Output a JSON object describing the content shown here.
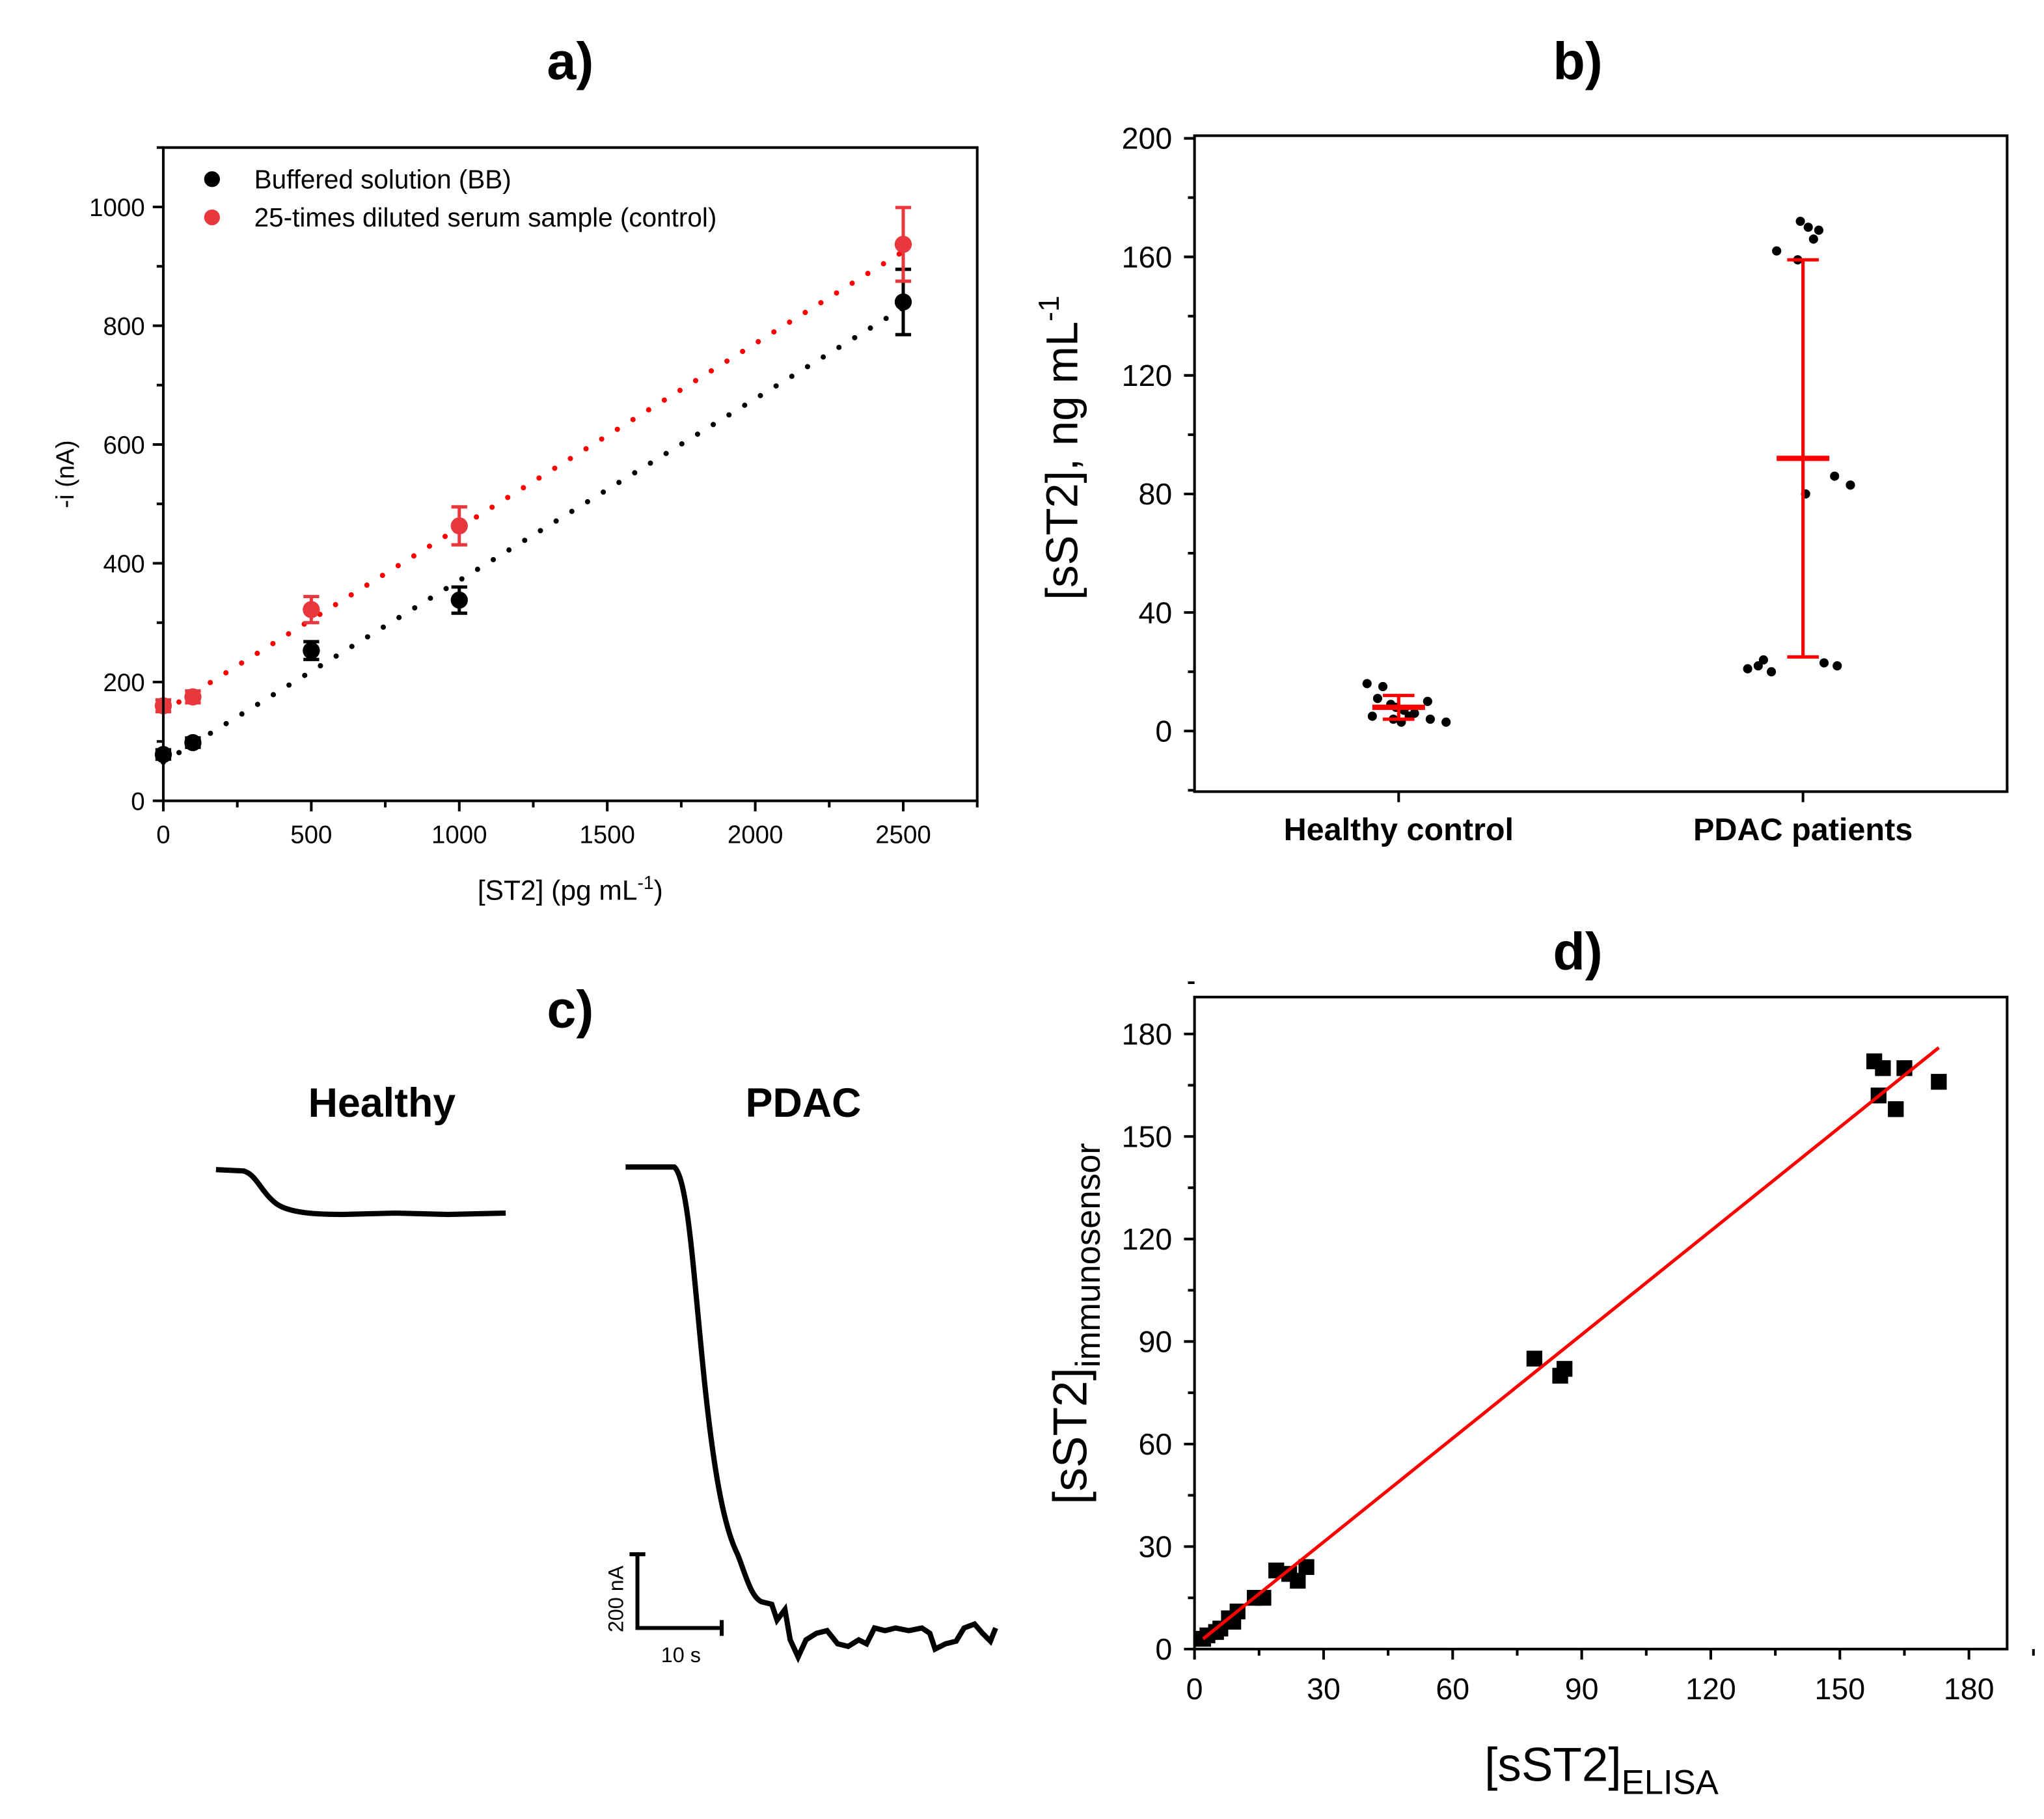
{
  "chart_data": [
    {
      "panel": "a)",
      "type": "scatter",
      "xlabel": "[ST2] (pg mL",
      "xlabel_sup": "-1",
      "xlabel_end": ")",
      "ylabel": "-i (nA)",
      "xlim": [
        0,
        2750
      ],
      "ylim": [
        0,
        1100
      ],
      "xticks": [
        0,
        500,
        1000,
        1500,
        2000,
        2500
      ],
      "yticks": [
        0,
        200,
        400,
        600,
        800,
        1000
      ],
      "legend_position": "top-left",
      "series": [
        {
          "name": "Buffered solution (BB)",
          "color": "#000000",
          "fit_color": "#000000",
          "x": [
            0,
            100,
            500,
            1000,
            2500
          ],
          "y": [
            78,
            98,
            253,
            338,
            840
          ],
          "err": [
            8,
            8,
            15,
            22,
            55
          ],
          "fit": [
            [
              0,
              65
            ],
            [
              2500,
              830
            ]
          ]
        },
        {
          "name": "25-times diluted serum sample (control)",
          "color": "#e8383d",
          "fit_color": "#ff0000",
          "x": [
            0,
            100,
            500,
            1000,
            2500
          ],
          "y": [
            160,
            175,
            322,
            463,
            937
          ],
          "err": [
            10,
            10,
            22,
            32,
            62
          ],
          "fit": [
            [
              0,
              150
            ],
            [
              2500,
              925
            ]
          ]
        }
      ]
    },
    {
      "panel": "b)",
      "type": "scatter",
      "ylabel": "[sST2], ng mL",
      "ylabel_sup": "-1",
      "ylim": [
        -20,
        200
      ],
      "yticks": [
        0,
        40,
        80,
        120,
        160,
        200
      ],
      "categories": [
        "Healthy control",
        "PDAC patients"
      ],
      "groups": [
        {
          "values": [
            16,
            15,
            11,
            10,
            9,
            8,
            7,
            6,
            5,
            5,
            4,
            4,
            3,
            3
          ],
          "mean": 8,
          "err_low": 4,
          "err_high": 12
        },
        {
          "values": [
            172,
            170,
            169,
            166,
            162,
            159,
            86,
            83,
            80,
            24,
            23,
            22,
            22,
            21,
            20
          ],
          "mean": 92,
          "err_low": 25,
          "err_high": 159
        }
      ],
      "mean_color": "#ff0000"
    },
    {
      "panel": "c)",
      "type": "line",
      "labels": [
        "Healthy",
        "PDAC"
      ],
      "scale_y": "200 nA",
      "scale_x": "10 s"
    },
    {
      "panel": "d)",
      "type": "scatter",
      "xlabel": "[sST2]",
      "xlabel_sub": "ELISA",
      "ylabel": "[sST2]",
      "ylabel_sub": "immunosensor",
      "xlim": [
        0,
        189
      ],
      "ylim": [
        0,
        190
      ],
      "xticks": [
        0,
        30,
        60,
        90,
        120,
        150,
        180
      ],
      "yticks": [
        0,
        30,
        60,
        90,
        120,
        150,
        180
      ],
      "x": [
        2,
        3,
        5,
        6,
        8,
        9,
        10,
        14,
        16,
        19,
        22,
        24,
        26,
        79,
        85,
        86,
        158,
        159,
        160,
        163,
        165,
        173
      ],
      "y": [
        3,
        4,
        5,
        6,
        9,
        8,
        11,
        15,
        15,
        23,
        22,
        20,
        24,
        85,
        80,
        82,
        172,
        162,
        170,
        158,
        170,
        166
      ],
      "fit": [
        [
          2,
          3
        ],
        [
          173,
          176
        ]
      ],
      "fit_color": "#ff0000"
    }
  ]
}
